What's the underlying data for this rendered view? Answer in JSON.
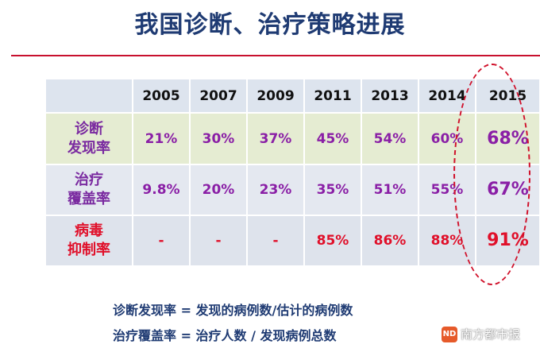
{
  "slide": {
    "title": "我国诊断、治疗策略进展"
  },
  "table": {
    "years": [
      "2005",
      "2007",
      "2009",
      "2011",
      "2013",
      "2014",
      "2015"
    ],
    "rows": [
      {
        "label_line1": "诊断",
        "label_line2": "发现率",
        "values": [
          "21%",
          "30%",
          "37%",
          "45%",
          "54%",
          "60%",
          "68%"
        ]
      },
      {
        "label_line1": "治疗",
        "label_line2": "覆盖率",
        "values": [
          "9.8%",
          "20%",
          "23%",
          "35%",
          "51%",
          "55%",
          "67%"
        ]
      },
      {
        "label_line1": "病毒",
        "label_line2": "抑制率",
        "values": [
          "-",
          "-",
          "-",
          "85%",
          "86%",
          "88%",
          "91%"
        ]
      }
    ]
  },
  "notes": {
    "line1": "诊断发现率 = 发现的病例数/估计的病例数",
    "line2": "治疗覆盖率 = 治疗人数 / 发现病例总数"
  },
  "watermark": {
    "icon_text": "ND",
    "text": "南方都市报"
  },
  "colors": {
    "title": "#1f3b73",
    "rule": "#c8102e",
    "purple_values": "#8a1fa6",
    "red_values": "#e0102a",
    "highlight": "#d0102a"
  }
}
